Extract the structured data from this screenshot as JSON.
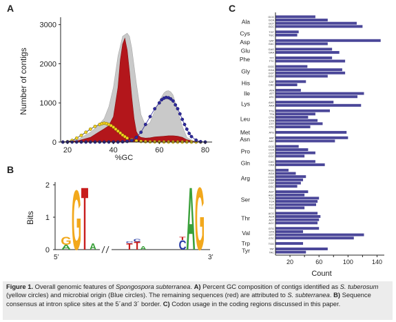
{
  "panels": {
    "a": "A",
    "b": "B",
    "c": "C"
  },
  "chart_data": [
    {
      "type": "area",
      "panel": "A",
      "xlabel": "%GC",
      "ylabel": "Number of contigs",
      "xlim": [
        17,
        83
      ],
      "ylim": [
        0,
        3100
      ],
      "xticks": [
        20,
        40,
        60,
        80
      ],
      "yticks": [
        0,
        1000,
        2000,
        3000
      ],
      "series": [
        {
          "style": "gray-area",
          "color": "#c9c9c9",
          "x": [
            17,
            20,
            25,
            30,
            33,
            36,
            38,
            40,
            42,
            44,
            46,
            47,
            48,
            50,
            52,
            54,
            56,
            58,
            60,
            62,
            63,
            64,
            65,
            66,
            67,
            68,
            69,
            70,
            72,
            75,
            78,
            80,
            83
          ],
          "values": [
            0,
            15,
            80,
            250,
            400,
            600,
            900,
            1400,
            2200,
            2700,
            2780,
            2700,
            2400,
            1500,
            700,
            420,
            500,
            800,
            1050,
            1250,
            1300,
            1310,
            1280,
            1200,
            1000,
            800,
            600,
            400,
            120,
            20,
            5,
            0,
            0
          ]
        },
        {
          "style": "red-area",
          "color": "#b3161b",
          "x": [
            17,
            20,
            25,
            30,
            33,
            36,
            38,
            40,
            42,
            43,
            44,
            45,
            46,
            47,
            48,
            49,
            50,
            51,
            52,
            54,
            56,
            58,
            60,
            62,
            64,
            66,
            68,
            70,
            72,
            75,
            78,
            80,
            83
          ],
          "values": [
            0,
            10,
            40,
            120,
            230,
            340,
            420,
            650,
            1400,
            2100,
            2500,
            2650,
            2350,
            1800,
            1150,
            600,
            270,
            160,
            120,
            100,
            110,
            130,
            140,
            150,
            160,
            160,
            150,
            120,
            60,
            20,
            5,
            0,
            0
          ]
        },
        {
          "style": "yellow-circles",
          "color": "#f2d21e",
          "x": [
            18,
            20,
            22,
            24,
            26,
            28,
            30,
            32,
            34,
            35,
            36,
            37,
            38,
            39,
            40,
            41,
            42,
            43,
            44,
            45,
            46,
            48,
            50,
            52,
            54,
            56,
            58,
            60,
            62,
            64,
            66,
            68,
            70,
            72,
            74,
            76,
            78,
            80
          ],
          "values": [
            0,
            10,
            40,
            100,
            170,
            250,
            330,
            400,
            450,
            470,
            480,
            470,
            450,
            420,
            380,
            330,
            280,
            230,
            180,
            140,
            100,
            60,
            30,
            15,
            8,
            5,
            3,
            2,
            1,
            0,
            0,
            0,
            0,
            0,
            0,
            0,
            0,
            0
          ]
        },
        {
          "style": "blue-circles",
          "color": "#2e2a9b",
          "x": [
            18,
            20,
            22,
            24,
            26,
            28,
            30,
            32,
            34,
            36,
            38,
            40,
            42,
            44,
            46,
            48,
            50,
            52,
            54,
            56,
            58,
            60,
            61,
            62,
            63,
            64,
            65,
            66,
            67,
            68,
            69,
            70,
            71,
            72,
            73,
            74,
            76,
            78,
            80
          ],
          "values": [
            0,
            0,
            0,
            0,
            0,
            0,
            0,
            0,
            0,
            0,
            0,
            0,
            0,
            5,
            15,
            40,
            120,
            250,
            450,
            650,
            850,
            1000,
            1080,
            1120,
            1140,
            1130,
            1100,
            1050,
            950,
            850,
            720,
            580,
            450,
            330,
            220,
            140,
            50,
            10,
            0
          ]
        }
      ]
    },
    {
      "type": "other",
      "panel": "B",
      "ylabel": "Bits",
      "ylim": [
        0,
        2
      ],
      "yticks": [
        0,
        1,
        2
      ],
      "left_label": "5’",
      "right_label": "3’",
      "positions": [
        {
          "bases": [
            {
              "b": "A",
              "h": 0.15
            },
            {
              "b": "G",
              "h": 0.25
            }
          ]
        },
        {
          "bases": [
            {
              "b": "G",
              "h": 1.9
            }
          ]
        },
        {
          "bases": [
            {
              "b": "T",
              "h": 2.0
            }
          ]
        },
        {
          "bases": [
            {
              "b": "A",
              "h": 0.2
            }
          ]
        },
        {
          "bases": [
            {
              "b": "T",
              "h": 0.2
            },
            {
              "b": "C",
              "h": 0.06
            }
          ]
        },
        {
          "bases": [
            {
              "b": "T",
              "h": 0.25
            },
            {
              "b": "C",
              "h": 0.08
            }
          ]
        },
        {
          "bases": [
            {
              "b": "A",
              "h": 0.12
            }
          ]
        },
        {
          "bases": [
            {
              "b": "C",
              "h": 0.3
            },
            {
              "b": "T",
              "h": 0.1
            }
          ]
        },
        {
          "bases": [
            {
              "b": "A",
              "h": 2.0
            }
          ]
        },
        {
          "bases": [
            {
              "b": "G",
              "h": 2.0
            }
          ]
        }
      ]
    },
    {
      "type": "bar",
      "panel": "C",
      "orientation": "horizontal",
      "xlabel": "Count",
      "xticks": [
        20,
        40,
        60,
        80,
        100,
        120,
        140
      ],
      "tick_labels": [
        "20",
        "60",
        "100",
        "140"
      ],
      "xlim": [
        0,
        150
      ],
      "groups": [
        {
          "aa": "Ala",
          "codons": [
            "GCG",
            "GCA",
            "GCT",
            "GCC"
          ],
          "values": [
            55,
            72,
            112,
            120
          ]
        },
        {
          "aa": "Cys",
          "codons": [
            "TGT",
            "TGC"
          ],
          "values": [
            32,
            30
          ]
        },
        {
          "aa": "Asp",
          "codons": [
            "GAT",
            "GAC"
          ],
          "values": [
            145,
            72
          ]
        },
        {
          "aa": "Glu",
          "codons": [
            "GAG",
            "GAA"
          ],
          "values": [
            78,
            88
          ]
        },
        {
          "aa": "Phe",
          "codons": [
            "TTT",
            "TTC"
          ],
          "values": [
            78,
            96
          ]
        },
        {
          "aa": "Gly",
          "codons": [
            "GGG",
            "GGA",
            "GGT",
            "GGC"
          ],
          "values": [
            44,
            92,
            96,
            72
          ]
        },
        {
          "aa": "His",
          "codons": [
            "CAT",
            "CAC"
          ],
          "values": [
            42,
            30
          ]
        },
        {
          "aa": "Ile",
          "codons": [
            "ATA",
            "ATT",
            "ATC"
          ],
          "values": [
            35,
            122,
            113
          ]
        },
        {
          "aa": "Lys",
          "codons": [
            "AAG",
            "AAA"
          ],
          "values": [
            80,
            118
          ]
        },
        {
          "aa": "Leu",
          "codons": [
            "TTG",
            "TTA",
            "CTG",
            "CTA",
            "CTT",
            "CTC"
          ],
          "values": [
            75,
            55,
            45,
            58,
            65,
            48
          ]
        },
        {
          "aa": "Met",
          "codons": [
            "ATG"
          ],
          "values": [
            98
          ]
        },
        {
          "aa": "Asn",
          "codons": [
            "AAT",
            "AAC"
          ],
          "values": [
            100,
            82
          ]
        },
        {
          "aa": "Pro",
          "codons": [
            "CCG",
            "CCA",
            "CCT",
            "CCC"
          ],
          "values": [
            32,
            45,
            55,
            40
          ]
        },
        {
          "aa": "Gln",
          "codons": [
            "CAG",
            "CAA"
          ],
          "values": [
            55,
            68
          ]
        },
        {
          "aa": "Arg",
          "codons": [
            "AGG",
            "AGA",
            "CGG",
            "CGA",
            "CGT",
            "CGC"
          ],
          "values": [
            18,
            28,
            42,
            38,
            35,
            30
          ]
        },
        {
          "aa": "Ser",
          "codons": [
            "AGT",
            "AGC",
            "TCG",
            "TCA",
            "TCT",
            "TCC"
          ],
          "values": [
            45,
            40,
            60,
            58,
            56,
            40
          ]
        },
        {
          "aa": "Thr",
          "codons": [
            "ACG",
            "ACA",
            "ACT",
            "ACC"
          ],
          "values": [
            58,
            62,
            60,
            58
          ]
        },
        {
          "aa": "Val",
          "codons": [
            "GTG",
            "GTA",
            "GTT",
            "GTC"
          ],
          "values": [
            60,
            38,
            122,
            108
          ]
        },
        {
          "aa": "Trp",
          "codons": [
            "TGG"
          ],
          "values": [
            38
          ]
        },
        {
          "aa": "Tyr",
          "codons": [
            "TAT",
            "TAC"
          ],
          "values": [
            72,
            42
          ]
        }
      ]
    }
  ],
  "caption": {
    "figure": "Figure 1.",
    "intro": " Overall genomic features of ",
    "species": "Spongospora subterranea",
    "a_label": "A)",
    "a_text1": " Percent GC composition of contigs identified as ",
    "a_species": "S. tuberosum",
    "a_text2": " (yellow circles) and microbial origin (Blue circles). The remaining sequences (red) are attributed to ",
    "a_species2": "S. subterranea",
    "b_label": "B)",
    "b_text": " Sequence consensus at intron splice sites at the 5´and 3´ border. ",
    "c_label": "C)",
    "c_text": " Codon usage in the coding regions discussed in this paper."
  },
  "colors": {
    "red": "#b3161b",
    "gray": "#c9c9c9",
    "blue": "#2e2a9b",
    "yellow": "#f2d21e",
    "bar": "#4b4799",
    "caption_bg": "#ececec"
  }
}
